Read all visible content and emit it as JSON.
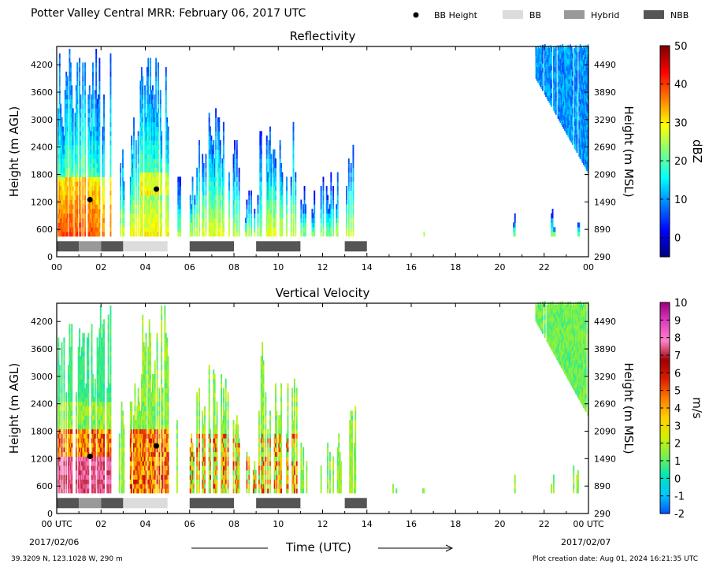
{
  "header": {
    "title": "Potter Valley Central MRR:  February 06, 2017 UTC",
    "legend": [
      {
        "label": "BB Height",
        "marker": "dot",
        "color": "#000000"
      },
      {
        "label": "BB",
        "marker": "swatch",
        "color": "#dcdcdc"
      },
      {
        "label": "Hybrid",
        "marker": "swatch",
        "color": "#999999"
      },
      {
        "label": "NBB",
        "marker": "swatch",
        "color": "#555555"
      }
    ]
  },
  "footer": {
    "location": "39.3209 N, 123.1028 W, 290 m",
    "creation": "Plot creation date: Aug 01, 2024 16:21:35 UTC",
    "date_start": "2017/02/06",
    "date_end": "2017/02/07",
    "xlabel": "Time (UTC)"
  },
  "chart_data": [
    {
      "type": "heatmap",
      "title": "Reflectivity",
      "ylabel": "Height (m AGL)",
      "ylabel_right": "Height (m MSL)",
      "xlim": [
        0,
        24
      ],
      "ylim": [
        0,
        4600
      ],
      "x_ticks": [
        "00",
        "02",
        "04",
        "06",
        "08",
        "10",
        "12",
        "14",
        "16",
        "18",
        "20",
        "22",
        "00"
      ],
      "y_ticks": [
        0,
        600,
        1200,
        1800,
        2400,
        3000,
        3600,
        4200
      ],
      "y_ticks_right": [
        290,
        890,
        1490,
        2090,
        2690,
        3290,
        3890,
        4490
      ],
      "colorbar": {
        "label": "dBZ",
        "range": [
          -5,
          50
        ],
        "ticks": [
          0,
          10,
          20,
          30,
          40,
          50
        ],
        "colormap": [
          "#00007f",
          "#0000ff",
          "#007fff",
          "#00ffff",
          "#7fff7f",
          "#ffff00",
          "#ff7f00",
          "#ff0000",
          "#7f0000"
        ]
      },
      "bb_height": [
        {
          "x": 1.5,
          "y": 1250
        },
        {
          "x": 4.5,
          "y": 1480
        }
      ],
      "bb_segments": [
        {
          "start": 0.0,
          "end": 1.0,
          "type": "NBB"
        },
        {
          "start": 1.0,
          "end": 2.0,
          "type": "Hybrid"
        },
        {
          "start": 2.0,
          "end": 3.0,
          "type": "NBB"
        },
        {
          "start": 3.0,
          "end": 5.0,
          "type": "BB"
        },
        {
          "start": 6.0,
          "end": 8.0,
          "type": "NBB"
        },
        {
          "start": 9.0,
          "end": 11.0,
          "type": "NBB"
        },
        {
          "start": 13.0,
          "end": 14.0,
          "type": "NBB"
        }
      ]
    },
    {
      "type": "heatmap",
      "title": "Vertical Velocity",
      "ylabel": "Height (m AGL)",
      "ylabel_right": "Height (m MSL)",
      "xlim": [
        0,
        24
      ],
      "ylim": [
        0,
        4600
      ],
      "x_ticks": [
        "00 UTC",
        "02",
        "04",
        "06",
        "08",
        "10",
        "12",
        "14",
        "16",
        "18",
        "20",
        "22",
        "00 UTC"
      ],
      "y_ticks": [
        0,
        600,
        1200,
        1800,
        2400,
        3000,
        3600,
        4200
      ],
      "y_ticks_right": [
        290,
        890,
        1490,
        2090,
        2690,
        3290,
        3890,
        4490
      ],
      "colorbar": {
        "label": "m/s",
        "range": [
          -2,
          10
        ],
        "ticks": [
          -2,
          -1,
          0,
          1,
          2,
          3,
          4,
          5,
          6,
          7,
          8,
          9,
          10
        ],
        "colormap": [
          "#0050ff",
          "#00c8ff",
          "#00e6b4",
          "#78f050",
          "#d2f000",
          "#ffd000",
          "#ff8000",
          "#dc1e00",
          "#a00000",
          "#ff80c8",
          "#e040c0",
          "#a00080"
        ]
      },
      "bb_height": [
        {
          "x": 1.5,
          "y": 1250
        },
        {
          "x": 4.5,
          "y": 1480
        }
      ],
      "bb_segments": [
        {
          "start": 0.0,
          "end": 1.0,
          "type": "NBB"
        },
        {
          "start": 1.0,
          "end": 2.0,
          "type": "Hybrid"
        },
        {
          "start": 2.0,
          "end": 3.0,
          "type": "NBB"
        },
        {
          "start": 3.0,
          "end": 5.0,
          "type": "BB"
        },
        {
          "start": 6.0,
          "end": 8.0,
          "type": "NBB"
        },
        {
          "start": 9.0,
          "end": 11.0,
          "type": "NBB"
        },
        {
          "start": 13.0,
          "end": 14.0,
          "type": "NBB"
        }
      ]
    }
  ]
}
